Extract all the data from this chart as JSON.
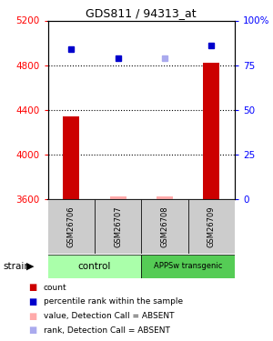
{
  "title": "GDS811 / 94313_at",
  "samples": [
    "GSM26706",
    "GSM26707",
    "GSM26708",
    "GSM26709"
  ],
  "ylim_left": [
    3600,
    5200
  ],
  "ylim_right": [
    0,
    100
  ],
  "yticks_left": [
    3600,
    4000,
    4400,
    4800,
    5200
  ],
  "yticks_right": [
    0,
    25,
    50,
    75,
    100
  ],
  "bar_values": [
    4340,
    3625,
    3630,
    4820
  ],
  "bar_absent": [
    false,
    true,
    true,
    false
  ],
  "rank_values": [
    84,
    79,
    79,
    86
  ],
  "rank_absent": [
    false,
    false,
    true,
    false
  ],
  "bar_color_present": "#cc0000",
  "bar_color_absent": "#ffaaaa",
  "rank_color_present": "#0000cc",
  "rank_color_absent": "#aaaaee",
  "bar_width": 0.35,
  "group_colors_light": "#aaffaa",
  "group_colors_dark": "#55cc55",
  "legend_items": [
    {
      "label": "count",
      "color": "#cc0000"
    },
    {
      "label": "percentile rank within the sample",
      "color": "#0000cc"
    },
    {
      "label": "value, Detection Call = ABSENT",
      "color": "#ffaaaa"
    },
    {
      "label": "rank, Detection Call = ABSENT",
      "color": "#aaaaee"
    }
  ]
}
